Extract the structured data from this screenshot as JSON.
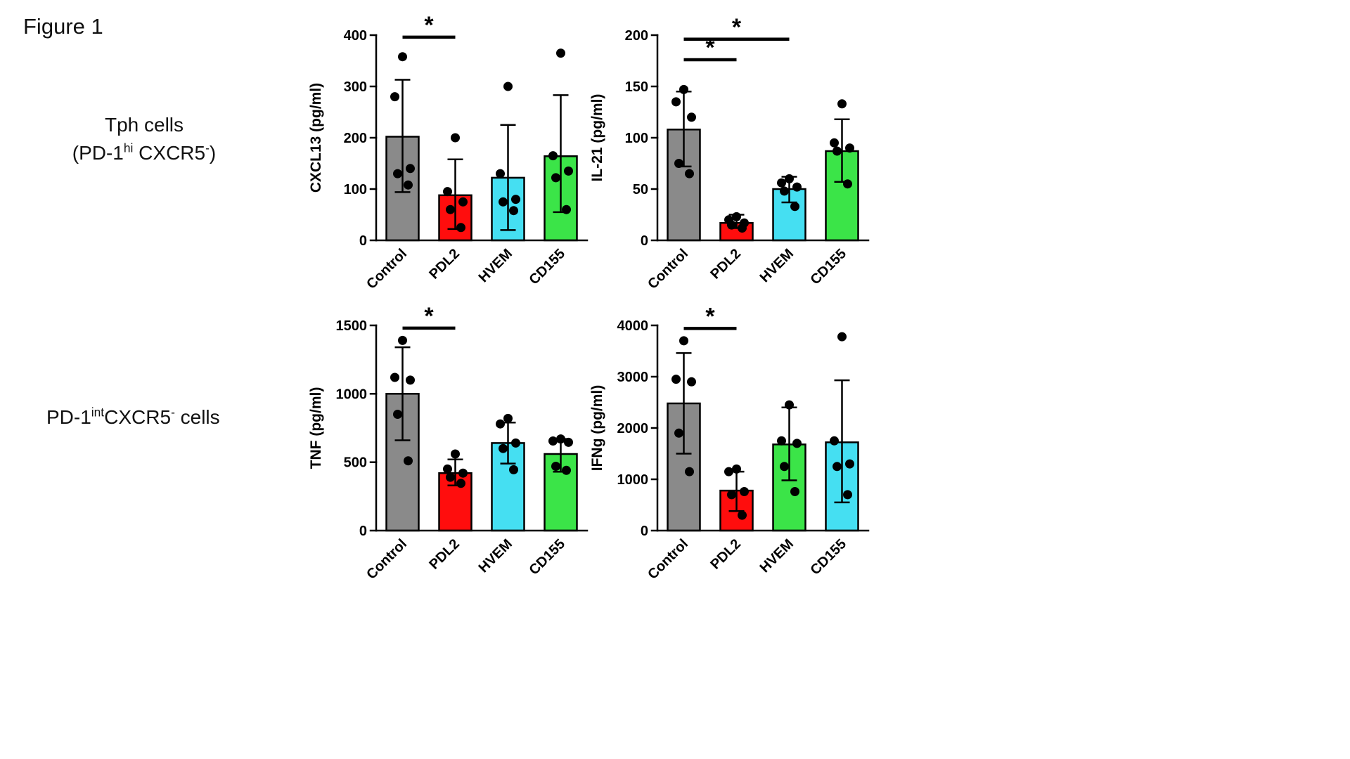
{
  "figure": {
    "title": "Figure 1",
    "row_labels": [
      {
        "name": "tph-cells",
        "lines": [
          [
            {
              "t": "Tph cells"
            }
          ],
          [
            {
              "t": "(PD-1"
            },
            {
              "t": "hi",
              "sup": true
            },
            {
              "t": " CXCR5"
            },
            {
              "t": "-",
              "sup": true
            },
            {
              "t": ")"
            }
          ]
        ]
      },
      {
        "name": "pd1int-cells",
        "lines": [
          [
            {
              "t": "PD-1"
            },
            {
              "t": "int",
              "sup": true
            },
            {
              "t": "CXCR5"
            },
            {
              "t": "-",
              "sup": true
            },
            {
              "t": " cells"
            }
          ]
        ]
      }
    ]
  },
  "colors": {
    "control_gray": "#8A8A8A",
    "pdl2_red": "#FF0D0D",
    "cyan": "#45DFF2",
    "green": "#3BE448",
    "axis": "#000000",
    "points": "#000000"
  },
  "chart_data": [
    {
      "type": "bar",
      "title": "",
      "xlabel": "",
      "ylabel": "CXCL13 (pg/ml)",
      "ylim": [
        0,
        400
      ],
      "yticks": [
        0,
        100,
        200,
        300,
        400
      ],
      "categories": [
        "Control",
        "PDL2",
        "HVEM",
        "CD155"
      ],
      "bar_colors": [
        "#8A8A8A",
        "#FF0D0D",
        "#45DFF2",
        "#3BE448"
      ],
      "values": [
        202,
        88,
        122,
        164
      ],
      "error_low": [
        94,
        22,
        20,
        55
      ],
      "error_high": [
        313,
        158,
        225,
        283
      ],
      "points": [
        [
          358,
          280,
          140,
          130,
          108
        ],
        [
          200,
          95,
          75,
          60,
          25
        ],
        [
          300,
          130,
          80,
          75,
          58
        ],
        [
          365,
          165,
          135,
          122,
          60
        ]
      ],
      "significance": [
        {
          "a": 0,
          "b": 1,
          "y": 396,
          "label": "*"
        }
      ],
      "legend": "none",
      "grid": false
    },
    {
      "type": "bar",
      "title": "",
      "xlabel": "",
      "ylabel": "IL-21 (pg/ml)",
      "ylim": [
        0,
        200
      ],
      "yticks": [
        0,
        50,
        100,
        150,
        200
      ],
      "categories": [
        "Control",
        "PDL2",
        "HVEM",
        "CD155"
      ],
      "bar_colors": [
        "#8A8A8A",
        "#FF0D0D",
        "#45DFF2",
        "#3BE448"
      ],
      "values": [
        108,
        17,
        50,
        87
      ],
      "error_low": [
        72,
        12,
        37,
        57
      ],
      "error_high": [
        145,
        25,
        62,
        118
      ],
      "points": [
        [
          147,
          135,
          120,
          75,
          65
        ],
        [
          23,
          20,
          17,
          15,
          12
        ],
        [
          60,
          56,
          52,
          48,
          33
        ],
        [
          133,
          95,
          90,
          87,
          55
        ]
      ],
      "significance": [
        {
          "a": 0,
          "b": 1,
          "y": 176,
          "label": "*"
        },
        {
          "a": 0,
          "b": 2,
          "y": 196,
          "label": "*"
        }
      ],
      "legend": "none",
      "grid": false
    },
    {
      "type": "bar",
      "title": "",
      "xlabel": "",
      "ylabel": "TNF (pg/ml)",
      "ylim": [
        0,
        1500
      ],
      "yticks": [
        0,
        500,
        1000,
        1500
      ],
      "categories": [
        "Control",
        "PDL2",
        "HVEM",
        "CD155"
      ],
      "bar_colors": [
        "#8A8A8A",
        "#FF0D0D",
        "#45DFF2",
        "#3BE448"
      ],
      "values": [
        1000,
        420,
        640,
        560
      ],
      "error_low": [
        660,
        330,
        490,
        430
      ],
      "error_high": [
        1340,
        520,
        790,
        670
      ],
      "points": [
        [
          1390,
          1120,
          1100,
          850,
          510
        ],
        [
          560,
          450,
          420,
          390,
          345
        ],
        [
          820,
          780,
          640,
          600,
          445
        ],
        [
          670,
          655,
          645,
          470,
          440
        ]
      ],
      "significance": [
        {
          "a": 0,
          "b": 1,
          "y": 1480,
          "label": "*"
        }
      ],
      "legend": "none",
      "grid": false
    },
    {
      "type": "bar",
      "title": "",
      "xlabel": "",
      "ylabel": "IFNg (pg/ml)",
      "ylim": [
        0,
        4000
      ],
      "yticks": [
        0,
        1000,
        2000,
        3000,
        4000
      ],
      "categories": [
        "Control",
        "PDL2",
        "HVEM",
        "CD155"
      ],
      "bar_colors": [
        "#8A8A8A",
        "#FF0D0D",
        "#3BE448",
        "#45DFF2"
      ],
      "values": [
        2480,
        780,
        1680,
        1720
      ],
      "error_low": [
        1500,
        380,
        980,
        550
      ],
      "error_high": [
        3460,
        1150,
        2400,
        2930
      ],
      "points": [
        [
          3700,
          2950,
          2900,
          1900,
          1150
        ],
        [
          1200,
          1150,
          760,
          700,
          300
        ],
        [
          2450,
          1750,
          1700,
          1250,
          760
        ],
        [
          3780,
          1750,
          1300,
          1250,
          700
        ]
      ],
      "significance": [
        {
          "a": 0,
          "b": 1,
          "y": 3940,
          "label": "*"
        }
      ],
      "legend": "none",
      "grid": false
    }
  ]
}
